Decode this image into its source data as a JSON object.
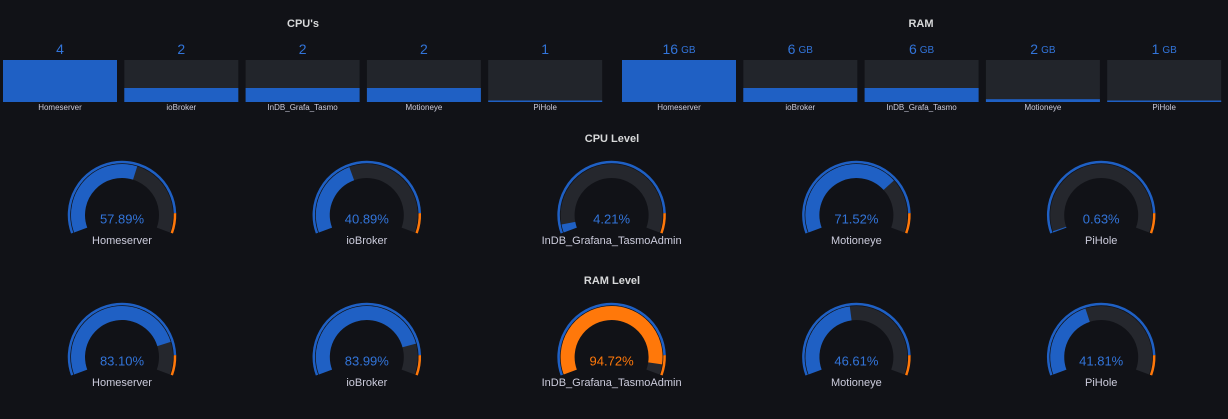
{
  "cpus": {
    "title": "CPU's",
    "lim": [
      1,
      4
    ],
    "items": [
      {
        "name": "Homeserver",
        "value": 4
      },
      {
        "name": "ioBroker",
        "value": 2
      },
      {
        "name": "InDB_Grafa_Tasmo",
        "value": 2
      },
      {
        "name": "Motioneye",
        "value": 2
      },
      {
        "name": "PiHole",
        "value": 1
      }
    ]
  },
  "ram": {
    "title": "RAM",
    "unit": "GB",
    "lim": [
      1,
      16
    ],
    "items": [
      {
        "name": "Homeserver",
        "value": 16
      },
      {
        "name": "ioBroker",
        "value": 6
      },
      {
        "name": "InDB_Grafa_Tasmo",
        "value": 6
      },
      {
        "name": "Motioneye",
        "value": 2
      },
      {
        "name": "PiHole",
        "value": 1
      }
    ]
  },
  "cpu_level": {
    "title": "CPU Level",
    "lim": [
      0,
      100
    ],
    "threshold": 90,
    "items": [
      {
        "name": "Homeserver",
        "value": 57.89,
        "value_label": "57.89%"
      },
      {
        "name": "ioBroker",
        "value": 40.89,
        "value_label": "40.89%"
      },
      {
        "name": "InDB_Grafana_TasmoAdmin",
        "value": 4.21,
        "value_label": "4.21%"
      },
      {
        "name": "Motioneye",
        "value": 71.52,
        "value_label": "71.52%"
      },
      {
        "name": "PiHole",
        "value": 0.63,
        "value_label": "0.63%"
      }
    ]
  },
  "ram_level": {
    "title": "RAM Level",
    "lim": [
      0,
      100
    ],
    "threshold": 90,
    "items": [
      {
        "name": "Homeserver",
        "value": 83.1,
        "value_label": "83.10%"
      },
      {
        "name": "ioBroker",
        "value": 83.99,
        "value_label": "83.99%"
      },
      {
        "name": "InDB_Grafana_TasmoAdmin",
        "value": 94.72,
        "value_label": "94.72%"
      },
      {
        "name": "Motioneye",
        "value": 46.61,
        "value_label": "46.61%"
      },
      {
        "name": "PiHole",
        "value": 41.81,
        "value_label": "41.81%"
      }
    ]
  }
}
